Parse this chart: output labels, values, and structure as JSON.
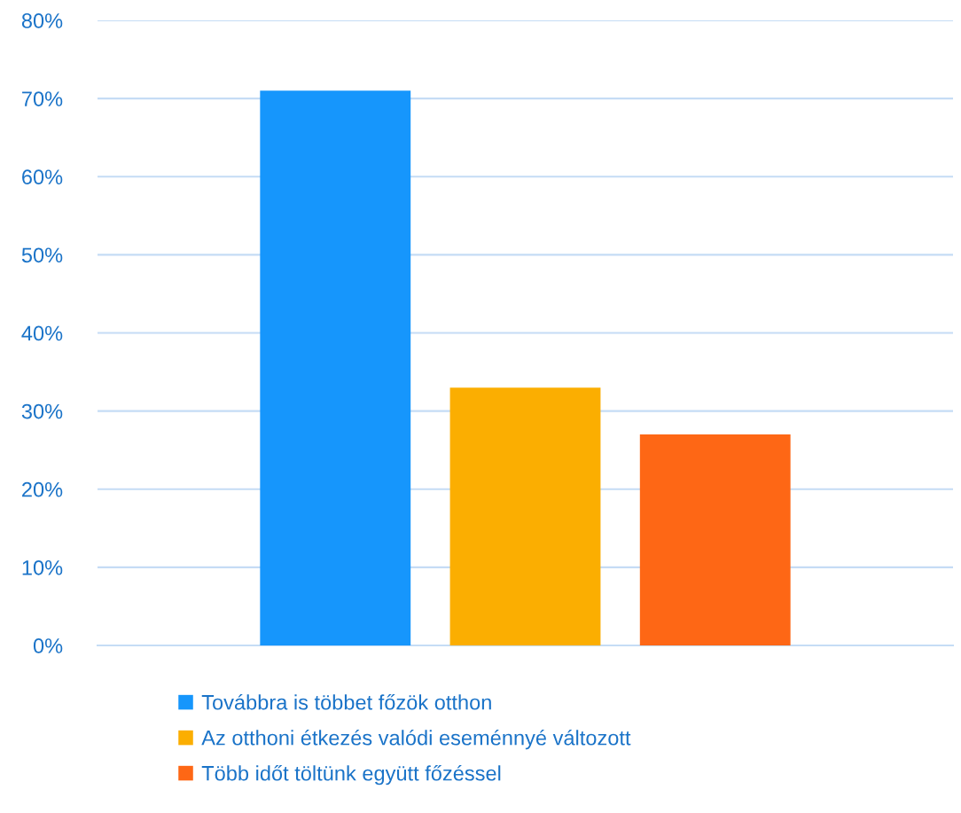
{
  "chart_data": {
    "type": "bar",
    "categories": [
      null
    ],
    "series": [
      {
        "name": "Továbbra is többet főzök otthon",
        "color": "#1696fc",
        "values": [
          71
        ]
      },
      {
        "name": "Az otthoni étkezés valódi eseménnyé változott",
        "color": "#fbae01",
        "values": [
          33
        ]
      },
      {
        "name": "Több időt töltünk együtt főzéssel",
        "color": "#fe6715",
        "values": [
          27
        ]
      }
    ],
    "ylim": [
      0,
      80
    ],
    "yticks": [
      {
        "value": 0,
        "label": "0%"
      },
      {
        "value": 10,
        "label": "10%"
      },
      {
        "value": 20,
        "label": "20%"
      },
      {
        "value": 30,
        "label": "30%"
      },
      {
        "value": 40,
        "label": "40%"
      },
      {
        "value": 50,
        "label": "50%"
      },
      {
        "value": 60,
        "label": "60%"
      },
      {
        "value": 70,
        "label": "70%"
      },
      {
        "value": 80,
        "label": "80%"
      }
    ],
    "grid": "y",
    "legend": "bottom"
  }
}
